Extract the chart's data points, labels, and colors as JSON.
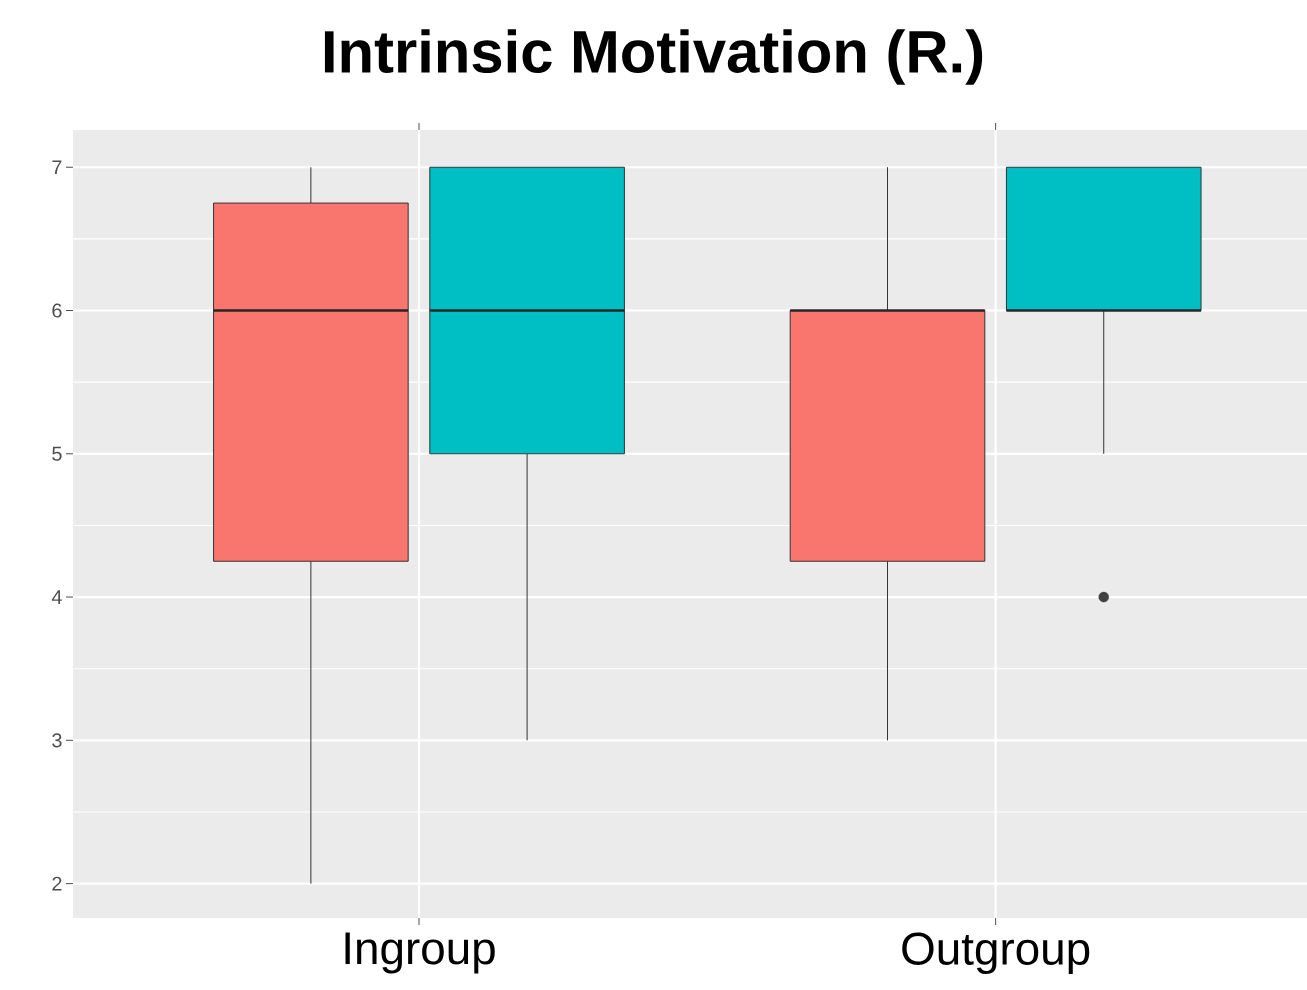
{
  "chart_data": {
    "type": "box",
    "title": "Intrinsic Motivation (R.)",
    "categories": [
      "Ingroup",
      "Outgroup"
    ],
    "series": [
      {
        "color": "#f8766d",
        "boxes": [
          {
            "low": 2,
            "q1": 4.25,
            "median": 6,
            "q3": 6.75,
            "high": 7
          },
          {
            "low": 3,
            "q1": 4.25,
            "median": 6,
            "q3": 6,
            "high": 7
          }
        ]
      },
      {
        "color": "#00bfc4",
        "boxes": [
          {
            "low": 3,
            "q1": 5,
            "median": 6,
            "q3": 7,
            "high": 7
          },
          {
            "low": 5,
            "q1": 6,
            "median": 6,
            "q3": 7,
            "high": 7,
            "outliers": [
              4
            ]
          }
        ]
      }
    ],
    "ylim": [
      1.76,
      7.26
    ],
    "yticks": [
      2,
      3,
      4,
      5,
      6,
      7
    ],
    "grid": true
  }
}
